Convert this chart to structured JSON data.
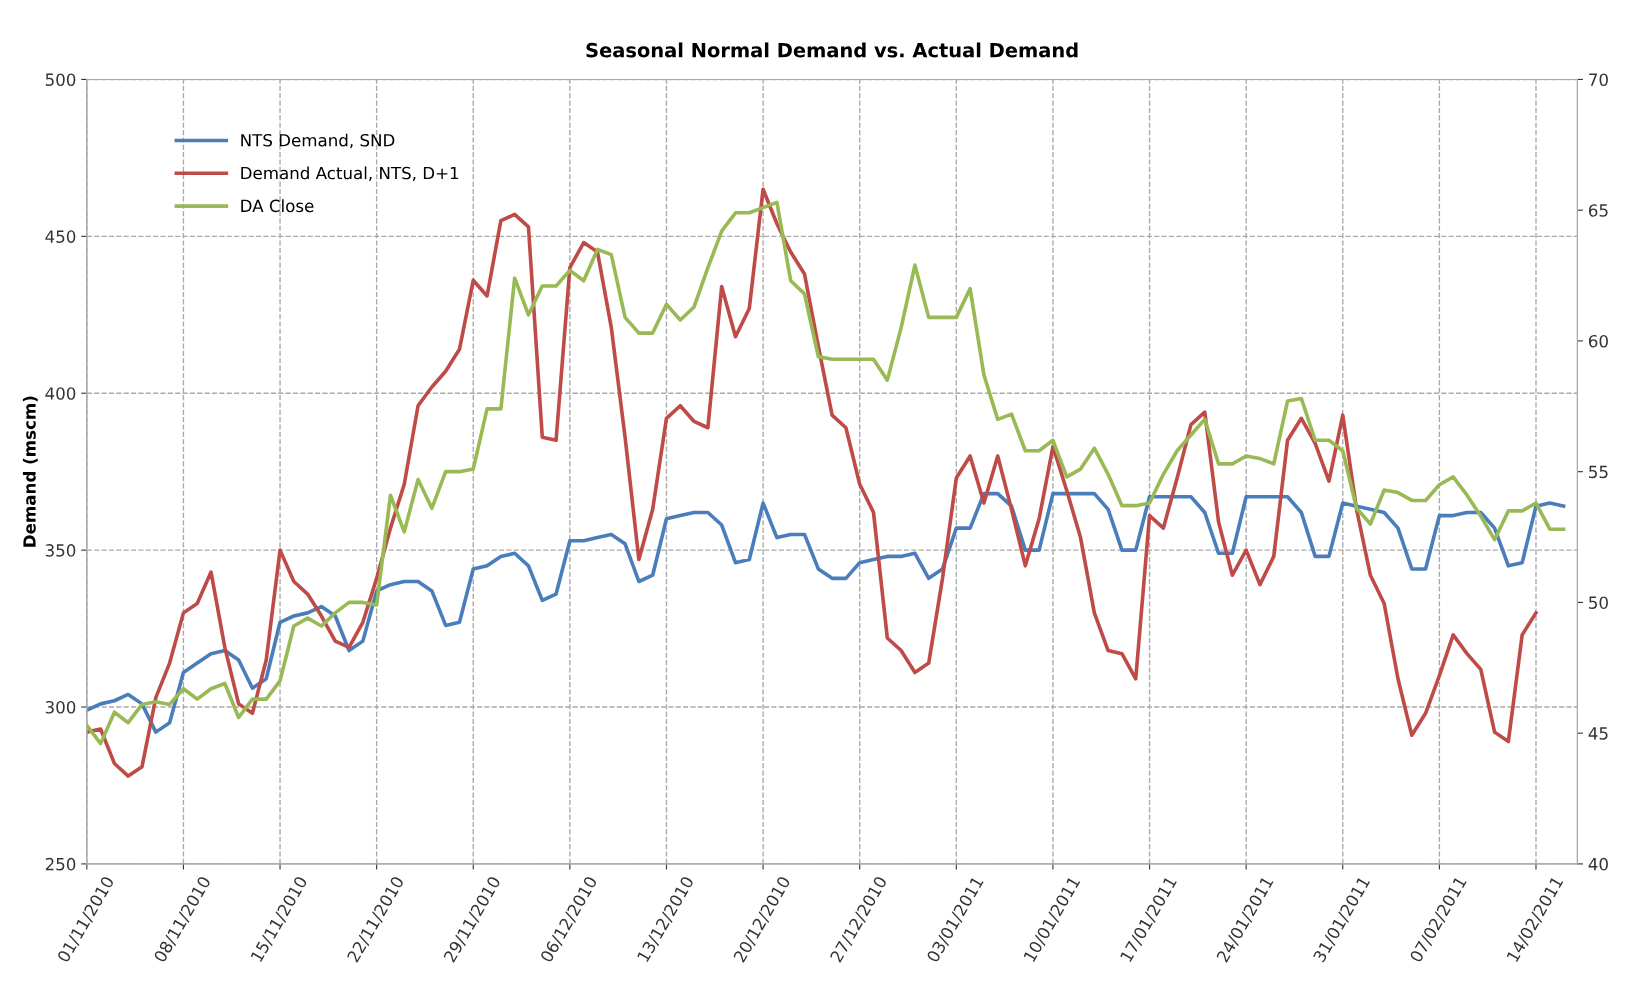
{
  "chart_data": {
    "type": "line",
    "title": "Seasonal Normal Demand vs. Actual Demand",
    "ylabel": "Demand (mscm)",
    "x": [
      "2010-11-01",
      "2010-11-02",
      "2010-11-03",
      "2010-11-04",
      "2010-11-05",
      "2010-11-06",
      "2010-11-07",
      "2010-11-08",
      "2010-11-09",
      "2010-11-10",
      "2010-11-11",
      "2010-11-12",
      "2010-11-13",
      "2010-11-14",
      "2010-11-15",
      "2010-11-16",
      "2010-11-17",
      "2010-11-18",
      "2010-11-19",
      "2010-11-20",
      "2010-11-21",
      "2010-11-22",
      "2010-11-23",
      "2010-11-24",
      "2010-11-25",
      "2010-11-26",
      "2010-11-27",
      "2010-11-28",
      "2010-11-29",
      "2010-11-30",
      "2010-12-01",
      "2010-12-02",
      "2010-12-03",
      "2010-12-04",
      "2010-12-05",
      "2010-12-06",
      "2010-12-07",
      "2010-12-08",
      "2010-12-09",
      "2010-12-10",
      "2010-12-11",
      "2010-12-12",
      "2010-12-13",
      "2010-12-14",
      "2010-12-15",
      "2010-12-16",
      "2010-12-17",
      "2010-12-18",
      "2010-12-19",
      "2010-12-20",
      "2010-12-21",
      "2010-12-22",
      "2010-12-23",
      "2010-12-24",
      "2010-12-25",
      "2010-12-26",
      "2010-12-27",
      "2010-12-28",
      "2010-12-29",
      "2010-12-30",
      "2010-12-31",
      "2011-01-01",
      "2011-01-02",
      "2011-01-03",
      "2011-01-04",
      "2011-01-05",
      "2011-01-06",
      "2011-01-07",
      "2011-01-08",
      "2011-01-09",
      "2011-01-10",
      "2011-01-11",
      "2011-01-12",
      "2011-01-13",
      "2011-01-14",
      "2011-01-15",
      "2011-01-16",
      "2011-01-17",
      "2011-01-18",
      "2011-01-19",
      "2011-01-20",
      "2011-01-21",
      "2011-01-22",
      "2011-01-23",
      "2011-01-24",
      "2011-01-25",
      "2011-01-26",
      "2011-01-27",
      "2011-01-28",
      "2011-01-29",
      "2011-01-30",
      "2011-01-31",
      "2011-02-01",
      "2011-02-02",
      "2011-02-03",
      "2011-02-04",
      "2011-02-05",
      "2011-02-06",
      "2011-02-07",
      "2011-02-08",
      "2011-02-09",
      "2011-02-10",
      "2011-02-11",
      "2011-02-12",
      "2011-02-13",
      "2011-02-14",
      "2011-02-15",
      "2011-02-16"
    ],
    "series": [
      {
        "name": "NTS Demand, SND",
        "color": "#4a7ebb",
        "values": [
          299,
          301,
          302,
          304,
          301,
          292,
          295,
          311,
          314,
          317,
          318,
          315,
          306,
          309,
          327,
          329,
          330,
          332,
          329,
          318,
          321,
          337,
          339,
          340,
          340,
          337,
          326,
          327,
          344,
          345,
          348,
          349,
          345,
          334,
          336,
          353,
          353,
          354,
          355,
          352,
          340,
          342,
          360,
          361,
          362,
          362,
          358,
          346,
          347,
          365,
          354,
          355,
          355,
          344,
          341,
          341,
          346,
          347,
          348,
          348,
          349,
          341,
          344,
          357,
          357,
          368,
          368,
          364,
          350,
          350,
          368,
          368,
          368,
          368,
          363,
          350,
          350,
          367,
          367,
          367,
          367,
          362,
          349,
          349,
          367,
          367,
          367,
          367,
          362,
          348,
          348,
          365,
          364,
          363,
          362,
          357,
          344,
          344,
          361,
          361,
          362,
          362,
          357,
          345,
          346,
          364,
          365,
          364
        ]
      },
      {
        "name": "Demand Actual, NTS, D+1",
        "color": "#be4b48",
        "values": [
          292,
          293,
          282,
          278,
          281,
          303,
          314,
          330,
          333,
          343,
          319,
          301,
          298,
          315,
          350,
          340,
          336,
          329,
          321,
          319,
          327,
          341,
          357,
          371,
          396,
          402,
          407,
          414,
          436,
          431,
          455,
          457,
          453,
          386,
          385,
          440,
          448,
          445,
          421,
          386,
          347,
          363,
          392,
          396,
          391,
          389,
          434,
          418,
          427,
          465,
          454,
          445,
          438,
          415,
          393,
          389,
          371,
          362,
          322,
          318,
          311,
          314,
          341,
          373,
          380,
          365,
          380,
          363,
          345,
          360,
          383,
          369,
          354,
          330,
          318,
          317,
          309,
          361,
          357,
          373,
          390,
          394,
          359,
          342,
          350,
          339,
          348,
          385,
          392,
          384,
          372,
          393,
          363,
          342,
          333,
          309,
          291,
          298,
          310,
          323,
          317,
          312,
          292,
          289,
          323,
          330,
          null,
          null
        ]
      },
      {
        "name": "DA Close",
        "color": "#98b954",
        "axis": "y2",
        "values": [
          45.3,
          44.6,
          45.8,
          45.4,
          46.1,
          46.2,
          46.1,
          46.7,
          46.3,
          46.7,
          46.9,
          45.6,
          46.3,
          46.3,
          47.0,
          49.1,
          49.4,
          49.1,
          49.6,
          50.0,
          50.0,
          49.9,
          54.1,
          52.7,
          54.7,
          53.6,
          55.0,
          55.0,
          55.1,
          57.4,
          57.4,
          62.4,
          61.0,
          62.1,
          62.1,
          62.7,
          62.3,
          63.5,
          63.3,
          60.9,
          60.3,
          60.3,
          61.4,
          60.8,
          61.3,
          62.8,
          64.2,
          64.9,
          64.9,
          65.1,
          65.3,
          62.3,
          61.8,
          59.4,
          59.3,
          59.3,
          59.3,
          59.3,
          58.5,
          60.5,
          62.9,
          60.9,
          60.9,
          60.9,
          62.0,
          58.7,
          57.0,
          57.2,
          55.8,
          55.8,
          56.2,
          54.8,
          55.1,
          55.9,
          54.9,
          53.7,
          53.7,
          53.8,
          54.9,
          55.8,
          56.4,
          57.0,
          55.3,
          55.3,
          55.6,
          55.5,
          55.3,
          57.7,
          57.8,
          56.2,
          56.2,
          55.8,
          53.6,
          53.0,
          54.3,
          54.2,
          53.9,
          53.9,
          54.5,
          54.8,
          54.1,
          53.3,
          52.4,
          53.5,
          53.5,
          53.8,
          52.8,
          52.8
        ]
      }
    ],
    "xlim": [
      "2010-11-01",
      "2011-02-17"
    ],
    "xticks": [
      {
        "value": "2010-11-01",
        "label": "01/11/2010"
      },
      {
        "value": "2010-11-08",
        "label": "08/11/2010"
      },
      {
        "value": "2010-11-15",
        "label": "15/11/2010"
      },
      {
        "value": "2010-11-22",
        "label": "22/11/2010"
      },
      {
        "value": "2010-11-29",
        "label": "29/11/2010"
      },
      {
        "value": "2010-12-06",
        "label": "06/12/2010"
      },
      {
        "value": "2010-12-13",
        "label": "13/12/2010"
      },
      {
        "value": "2010-12-20",
        "label": "20/12/2010"
      },
      {
        "value": "2010-12-27",
        "label": "27/12/2010"
      },
      {
        "value": "2011-01-03",
        "label": "03/01/2011"
      },
      {
        "value": "2011-01-10",
        "label": "10/01/2011"
      },
      {
        "value": "2011-01-17",
        "label": "17/01/2011"
      },
      {
        "value": "2011-01-24",
        "label": "24/01/2011"
      },
      {
        "value": "2011-01-31",
        "label": "31/01/2011"
      },
      {
        "value": "2011-02-07",
        "label": "07/02/2011"
      },
      {
        "value": "2011-02-14",
        "label": "14/02/2011"
      }
    ],
    "ylim": [
      250,
      500
    ],
    "yticks": [
      250,
      300,
      350,
      400,
      450,
      500
    ],
    "y2lim": [
      40,
      70
    ],
    "y2ticks": [
      40,
      45,
      50,
      55,
      60,
      65,
      70
    ],
    "grid": true,
    "legend": "top left",
    "line_style": "solid",
    "marker": "none"
  }
}
